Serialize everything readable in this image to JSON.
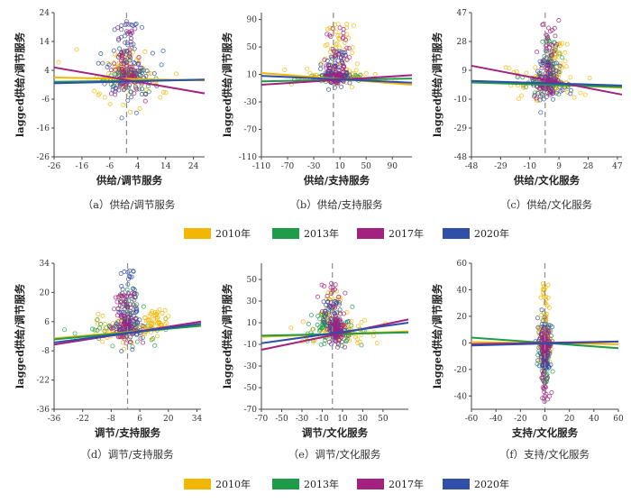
{
  "colors": {
    "2010年": "#f2b705",
    "2013年": "#1f9c4a",
    "2017年": "#a3217f",
    "2020年": "#2f4fa8",
    "axis": "#444444",
    "refline": "#8c8c8c"
  },
  "legend": {
    "entries": [
      "2010年",
      "2013年",
      "2017年",
      "2020年"
    ]
  },
  "chart_data": [
    {
      "type": "scatter",
      "caption": "（a）供给/调节服务",
      "xlabel": "供给/调节服务",
      "ylabel": "lagged供给/调节服务",
      "xlim": [
        -26,
        28
      ],
      "ylim": [
        -26,
        24
      ],
      "xticks": [
        -26,
        -16,
        -6,
        4,
        14,
        24
      ],
      "yticks": [
        24,
        14,
        4,
        -6,
        -16,
        -26
      ],
      "cluster": {
        "x_center": 0,
        "y_center": 1,
        "x_spread": 4,
        "y_spread": 4,
        "y_up": 20,
        "y_down": -7
      },
      "series": [
        {
          "name": "2010年",
          "fit": [
            [
              -26,
              1.5
            ],
            [
              28,
              0.5
            ]
          ],
          "spread": [
            7,
            5
          ],
          "spike": [
            0,
            12
          ]
        },
        {
          "name": "2013年",
          "fit": [
            [
              -26,
              0.0
            ],
            [
              28,
              0.7
            ]
          ],
          "spread": [
            4,
            2
          ],
          "spike": [
            0,
            4
          ]
        },
        {
          "name": "2017年",
          "fit": [
            [
              -26,
              5.0
            ],
            [
              28,
              -4.0
            ]
          ],
          "spread": [
            3,
            3
          ],
          "spike": [
            0,
            21
          ]
        },
        {
          "name": "2020年",
          "fit": [
            [
              -26,
              -0.5
            ],
            [
              28,
              0.8
            ]
          ],
          "spread": [
            6,
            6
          ],
          "spike": [
            0,
            21
          ]
        }
      ]
    },
    {
      "type": "scatter",
      "caption": "（b）供给/支持服务",
      "xlabel": "供给/支持服务",
      "ylabel": "lagged供给/调节服务",
      "xlim": [
        -110,
        120
      ],
      "ylim": [
        -110,
        100
      ],
      "xticks": [
        -110,
        -70,
        -30,
        10,
        50,
        90
      ],
      "yticks": [
        90,
        50,
        10,
        -30,
        -70,
        -110
      ],
      "cluster": {
        "x_center": 4,
        "y_center": 5,
        "x_spread": 30,
        "y_spread": 4,
        "y_up": 85,
        "y_down": -6
      },
      "series": [
        {
          "name": "2010年",
          "fit": [
            [
              -110,
              12
            ],
            [
              120,
              -5
            ]
          ],
          "spread": [
            40,
            6
          ],
          "spike": [
            8,
            85
          ]
        },
        {
          "name": "2013年",
          "fit": [
            [
              -110,
              0
            ],
            [
              120,
              4
            ]
          ],
          "spread": [
            25,
            3
          ],
          "spike": [
            4,
            10
          ]
        },
        {
          "name": "2017年",
          "fit": [
            [
              -110,
              -5
            ],
            [
              120,
              9
            ]
          ],
          "spread": [
            8,
            4
          ],
          "spike": [
            4,
            85
          ]
        },
        {
          "name": "2020年",
          "fit": [
            [
              -110,
              8
            ],
            [
              120,
              -2
            ]
          ],
          "spread": [
            10,
            5
          ],
          "spike": [
            4,
            45
          ]
        }
      ]
    },
    {
      "type": "scatter",
      "caption": "（c）供给/文化服务",
      "xlabel": "供给/文化服务",
      "ylabel": "lagged供给/调节服务",
      "xlim": [
        -48,
        50
      ],
      "ylim": [
        -48,
        47
      ],
      "xticks": [
        -48,
        -29,
        -10,
        9,
        28,
        47
      ],
      "yticks": [
        47,
        28,
        9,
        -10,
        -29,
        -48
      ],
      "cluster": {
        "x_center": 2,
        "y_center": 0,
        "x_spread": 8,
        "y_spread": 4,
        "y_up": 42,
        "y_down": -8
      },
      "series": [
        {
          "name": "2010年",
          "fit": [
            [
              -48,
              2
            ],
            [
              50,
              -2.5
            ]
          ],
          "spread": [
            12,
            5
          ],
          "spike": [
            8,
            28
          ]
        },
        {
          "name": "2013年",
          "fit": [
            [
              -48,
              1
            ],
            [
              50,
              -2
            ]
          ],
          "spread": [
            8,
            3
          ],
          "spike": [
            3,
            30
          ]
        },
        {
          "name": "2017年",
          "fit": [
            [
              -48,
              12
            ],
            [
              50,
              -7
            ]
          ],
          "spread": [
            4,
            4
          ],
          "spike": [
            2,
            42
          ]
        },
        {
          "name": "2020年",
          "fit": [
            [
              -48,
              2
            ],
            [
              50,
              -1
            ]
          ],
          "spread": [
            6,
            5
          ],
          "spike": [
            2,
            16
          ]
        }
      ]
    },
    {
      "type": "scatter",
      "caption": "（d）调节/支持服务",
      "xlabel": "调节/支持服务",
      "ylabel": "lagged供给/调节服务",
      "xlim": [
        -36,
        36
      ],
      "ylim": [
        -36,
        34
      ],
      "xticks": [
        -36,
        -22,
        -8,
        6,
        20,
        34
      ],
      "yticks": [
        34,
        20,
        6,
        -8,
        -22,
        -36
      ],
      "cluster": {
        "x_center": 0,
        "y_center": 2,
        "x_spread": 6,
        "y_spread": 3,
        "y_up": 30,
        "y_down": -4
      },
      "series": [
        {
          "name": "2010年",
          "fit": [
            [
              -36,
              -2
            ],
            [
              36,
              4
            ]
          ],
          "spread": [
            10,
            4
          ],
          "spike": [
            14,
            12
          ]
        },
        {
          "name": "2013年",
          "fit": [
            [
              -36,
              -2.5
            ],
            [
              36,
              4
            ]
          ],
          "spread": [
            12,
            3
          ],
          "spike": [
            0,
            22
          ]
        },
        {
          "name": "2017年",
          "fit": [
            [
              -36,
              -5
            ],
            [
              36,
              6
            ]
          ],
          "spread": [
            4,
            3
          ],
          "spike": [
            0,
            20
          ]
        },
        {
          "name": "2020年",
          "fit": [
            [
              -36,
              -4
            ],
            [
              36,
              5
            ]
          ],
          "spread": [
            3,
            4
          ],
          "spike": [
            0,
            32
          ]
        }
      ]
    },
    {
      "type": "scatter",
      "caption": "（e）调节/文化服务",
      "xlabel": "调节/文化服务",
      "ylabel": "lagged供给/调节服务",
      "xlim": [
        -70,
        75
      ],
      "ylim": [
        -70,
        65
      ],
      "xticks": [
        -70,
        -50,
        -30,
        -10,
        10,
        30,
        50
      ],
      "yticks": [
        50,
        30,
        10,
        -10,
        -30,
        -50,
        -70
      ],
      "cluster": {
        "x_center": 5,
        "y_center": 2,
        "x_spread": 12,
        "y_spread": 6,
        "y_up": 52,
        "y_down": -6
      },
      "series": [
        {
          "name": "2010年",
          "fit": [
            [
              -70,
              -3
            ],
            [
              75,
              2
            ]
          ],
          "spread": [
            20,
            6
          ],
          "spike": [
            2,
            40
          ]
        },
        {
          "name": "2013年",
          "fit": [
            [
              -70,
              -2
            ],
            [
              75,
              1
            ]
          ],
          "spread": [
            15,
            8
          ],
          "spike": [
            -8,
            22
          ]
        },
        {
          "name": "2017年",
          "fit": [
            [
              -70,
              -15
            ],
            [
              75,
              13
            ]
          ],
          "spread": [
            4,
            6
          ],
          "spike": [
            0,
            52
          ]
        },
        {
          "name": "2020年",
          "fit": [
            [
              -70,
              -9
            ],
            [
              75,
              10
            ]
          ],
          "spread": [
            4,
            5
          ],
          "spike": [
            0,
            30
          ]
        }
      ]
    },
    {
      "type": "scatter",
      "caption": "（f）支持/文化服务",
      "xlabel": "支持/文化服务",
      "ylabel": "lagged供给/调节服务",
      "xlim": [
        -60,
        60
      ],
      "ylim": [
        -50,
        60
      ],
      "xticks": [
        -60,
        -40,
        -20,
        0,
        20,
        40,
        60
      ],
      "yticks": [
        60,
        40,
        20,
        0,
        -20,
        -40
      ],
      "cluster": {
        "x_center": 0,
        "y_center": 0,
        "x_spread": 3,
        "y_spread": 5,
        "y_up": 45,
        "y_down": -45
      },
      "series": [
        {
          "name": "2010年",
          "fit": [
            [
              -60,
              0.5
            ],
            [
              60,
              -1
            ]
          ],
          "spread": [
            3,
            8
          ],
          "spike": [
            0,
            45
          ]
        },
        {
          "name": "2013年",
          "fit": [
            [
              -60,
              4
            ],
            [
              60,
              -4
            ]
          ],
          "spread": [
            3,
            8
          ],
          "spike": [
            0,
            -30
          ]
        },
        {
          "name": "2017年",
          "fit": [
            [
              -60,
              -1
            ],
            [
              60,
              1
            ]
          ],
          "spread": [
            2,
            5
          ],
          "spike": [
            0,
            -45
          ]
        },
        {
          "name": "2020年",
          "fit": [
            [
              -60,
              -2
            ],
            [
              60,
              1
            ]
          ],
          "spread": [
            3,
            10
          ],
          "spike": [
            0,
            -20
          ]
        }
      ]
    }
  ]
}
